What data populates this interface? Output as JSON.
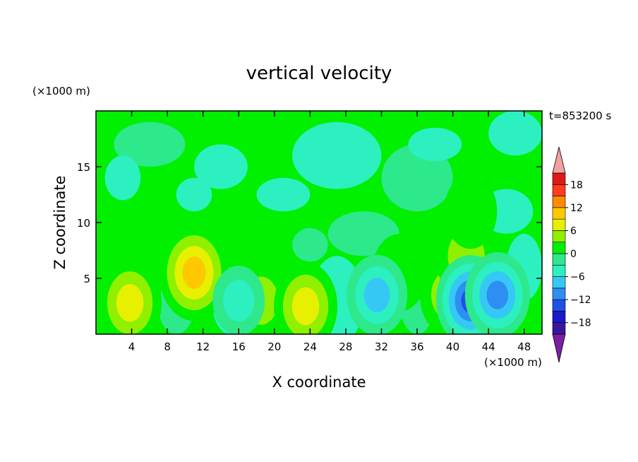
{
  "chart_data": {
    "type": "heatmap",
    "title": "vertical velocity",
    "xlabel": "X coordinate",
    "ylabel": "Z coordinate",
    "x_unit": "(×1000 m)",
    "y_unit": "(×1000 m)",
    "time_label": "t=853200 s",
    "xlim": [
      0,
      50
    ],
    "ylim": [
      0,
      20
    ],
    "x_ticks": [
      4,
      8,
      12,
      16,
      20,
      24,
      28,
      32,
      36,
      40,
      44,
      48
    ],
    "y_ticks": [
      5,
      10,
      15
    ],
    "colorbar": {
      "levels": [
        -21,
        -18,
        -15,
        -12,
        -9,
        -6,
        -3,
        0,
        3,
        6,
        9,
        12,
        15,
        18,
        21
      ],
      "tick_labels": [
        18,
        12,
        6,
        0,
        -6,
        -12,
        -18
      ],
      "colors": [
        "#7a1fa2",
        "#3a16a0",
        "#1a1ac8",
        "#1f4fe6",
        "#2e8ef2",
        "#36c8f5",
        "#2cf0c0",
        "#2ee88c",
        "#00f000",
        "#8ff000",
        "#e6f000",
        "#ffc800",
        "#ff8c00",
        "#ff3c1e",
        "#e01818",
        "#f4a0a0"
      ]
    },
    "features": [
      {
        "x": 3.8,
        "z": 2.8,
        "w": 8,
        "type": "updraft"
      },
      {
        "x": 11.0,
        "z": 5.5,
        "w": 11,
        "type": "updraft"
      },
      {
        "x": 18.5,
        "z": 3.0,
        "w": 5,
        "type": "updraft"
      },
      {
        "x": 23.5,
        "z": 2.5,
        "w": 8,
        "type": "updraft"
      },
      {
        "x": 34.0,
        "z": 5.5,
        "w": 4,
        "type": "updraft"
      },
      {
        "x": 39.5,
        "z": 3.5,
        "w": 5,
        "type": "updraft"
      },
      {
        "x": 41.5,
        "z": 7.0,
        "w": 7,
        "type": "updraft"
      },
      {
        "x": 42.0,
        "z": 11.0,
        "w": 3,
        "type": "updraft"
      },
      {
        "x": 31.5,
        "z": 3.5,
        "w": -10,
        "type": "downdraft"
      },
      {
        "x": 42.0,
        "z": 3.0,
        "w": -14,
        "type": "downdraft"
      },
      {
        "x": 45.0,
        "z": 3.5,
        "w": -12,
        "type": "downdraft"
      },
      {
        "x": 16.0,
        "z": 3.0,
        "w": -6,
        "type": "downdraft"
      }
    ]
  }
}
